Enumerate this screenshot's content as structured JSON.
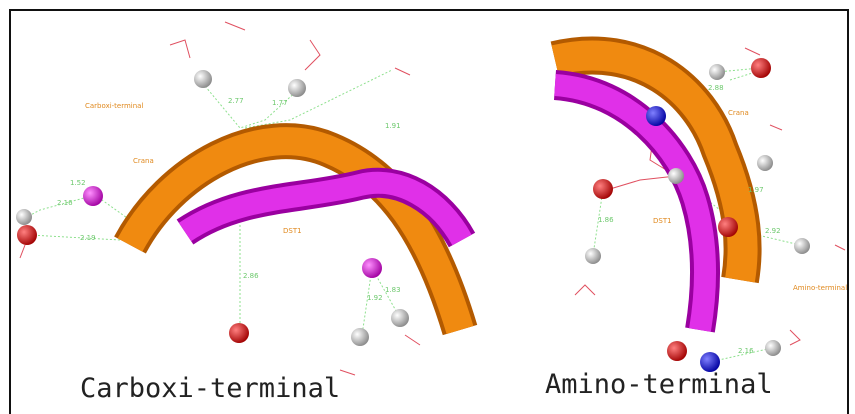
{
  "panels": [
    {
      "caption": "Carboxi-terminal",
      "labels": [
        "Carboxi-terminal",
        "Crana",
        "2.77",
        "1.77",
        "1.91",
        "1.52",
        "2.16",
        "2.19",
        "2.86",
        "DST1",
        "1.92",
        "1.83"
      ]
    },
    {
      "caption": "Amino-terminal",
      "labels": [
        "2.88",
        "Crana",
        "1.97",
        "DST1",
        "2.92",
        "1.86",
        "Amino-terminal",
        "2.16"
      ]
    }
  ]
}
